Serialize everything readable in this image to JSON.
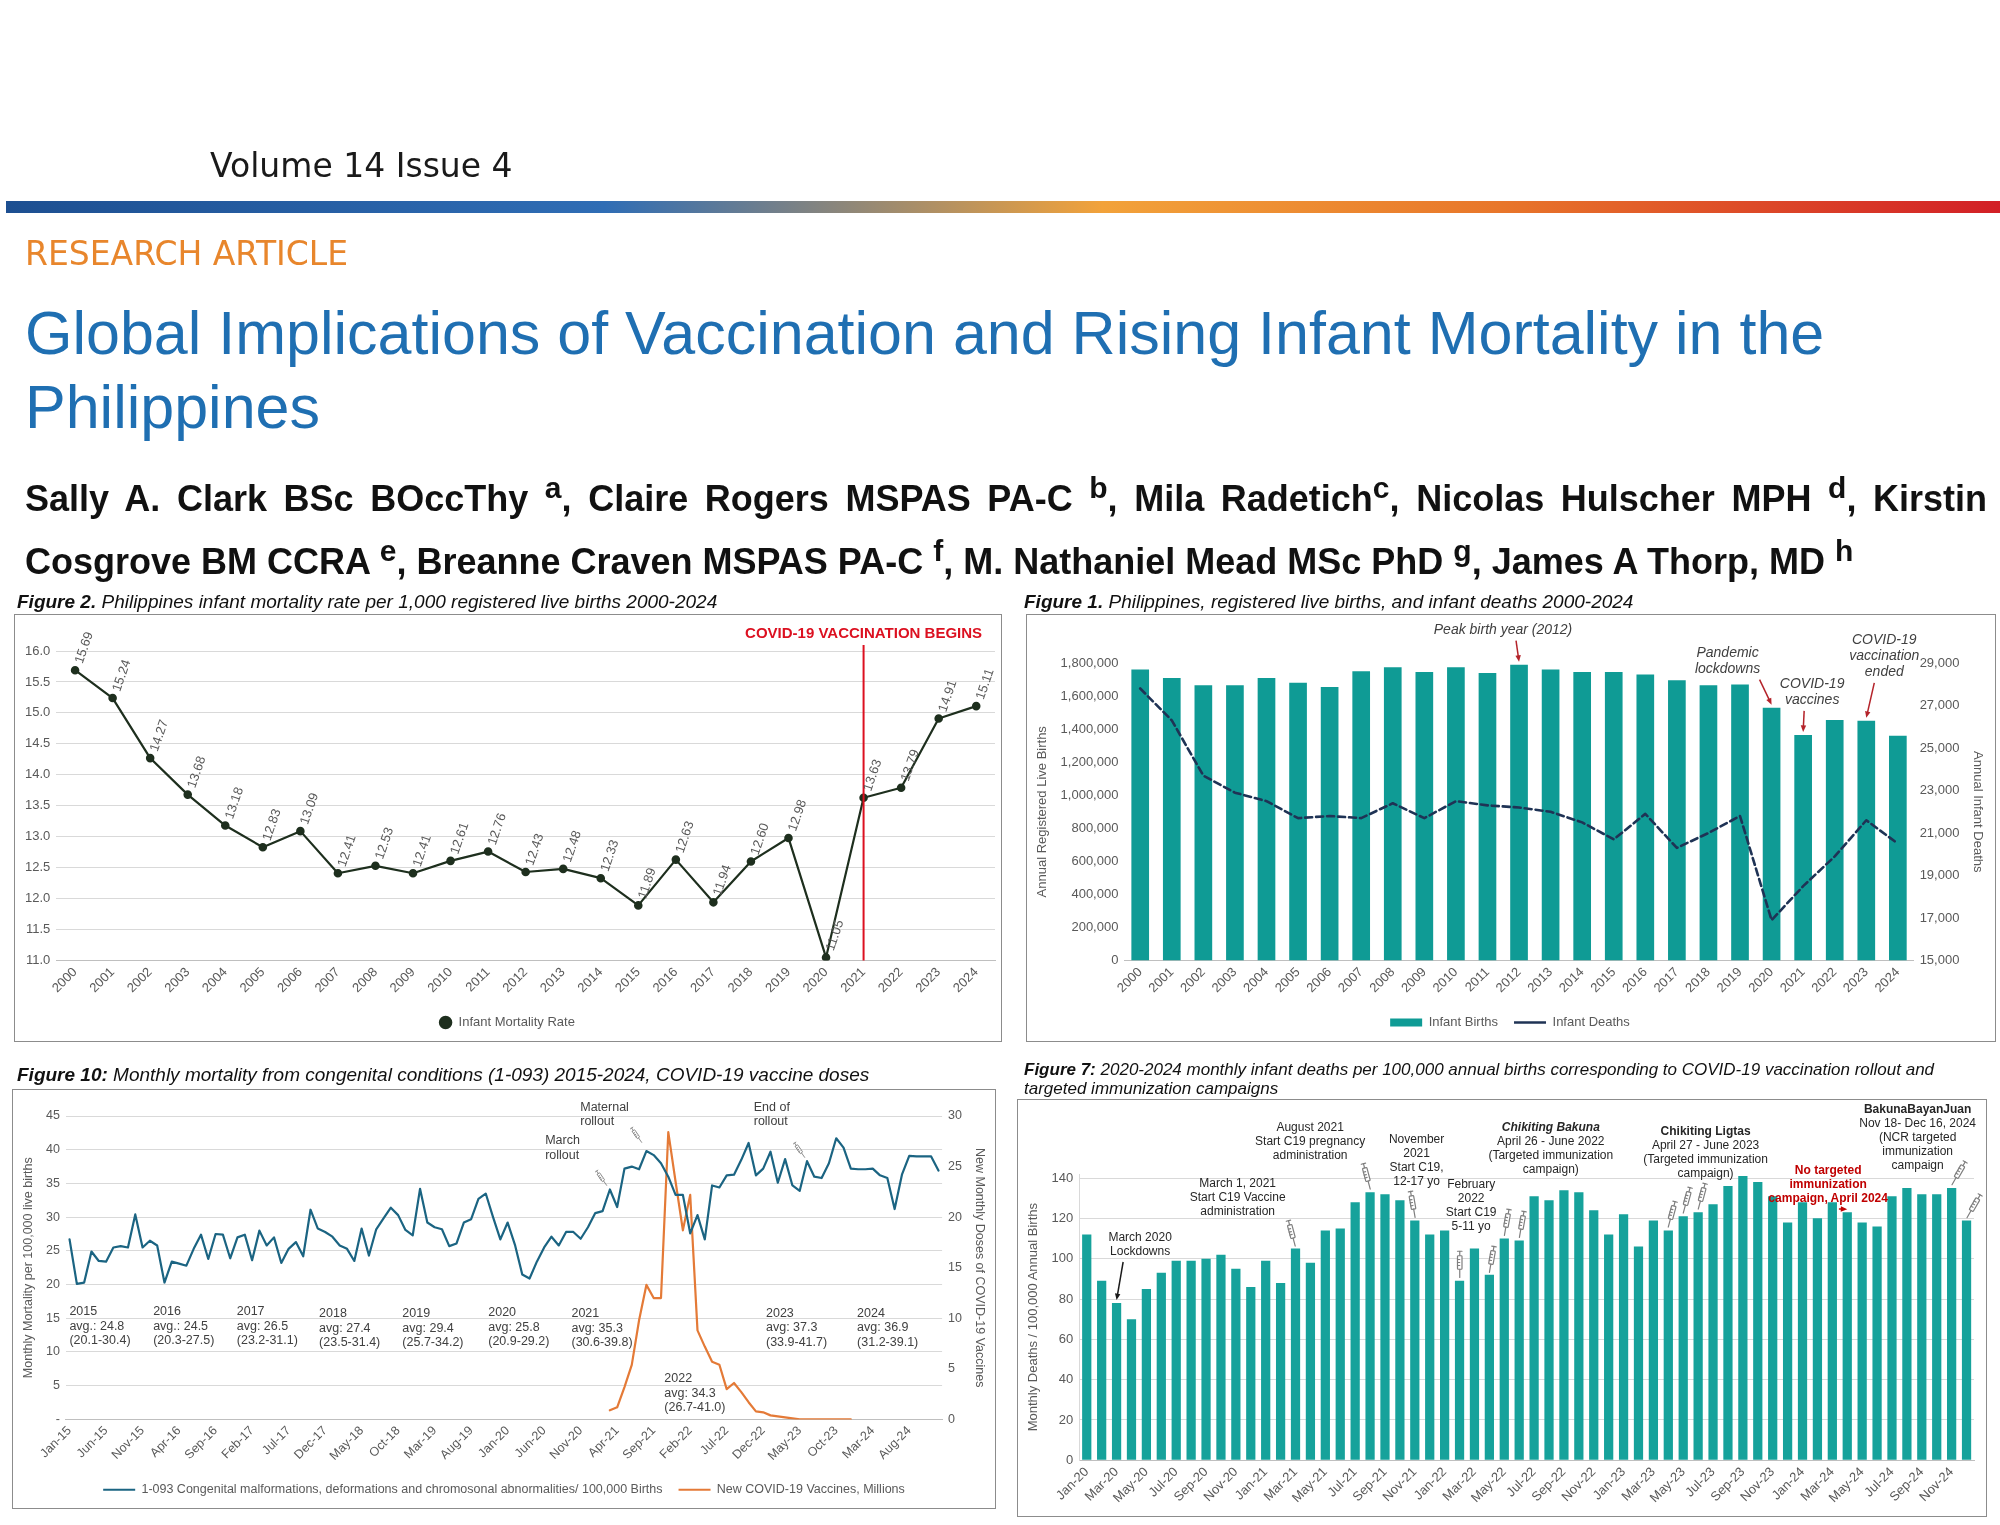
{
  "chart_data": [
    {
      "type": "other",
      "title": "Global Implications of Vaccination and Rising Infant Mortality in the Philippines",
      "annotations": [
        "Volume 14 Issue 4",
        "RESEARCH ARTICLE",
        "Sally A. Clark BSc BOccThy $^{a}$, Claire Rogers MSPAS PA-C $^{b}$, Mila Radetich$^{c}$, Nicolas Hulscher MPH $^{d}$, Kirstin Cosgrove BM CCRA $^{e}$, Breanne Craven MSPAS PA-C $^{f}$, M. Nathaniel Mead MSc PhD $^{g}$, James A Thorp, MD $^{h}$"
      ]
    },
    {
      "type": "line",
      "title": "Figure 2. Philippines infant mortality rate per 1,000 registered live births 2000-2024",
      "categories": [
        "2000",
        "2001",
        "2002",
        "2003",
        "2004",
        "2005",
        "2006",
        "2007",
        "2008",
        "2009",
        "2010",
        "2011",
        "2012",
        "2013",
        "2014",
        "2015",
        "2016",
        "2017",
        "2018",
        "2019",
        "2020",
        "2021",
        "2022",
        "2023",
        "2024"
      ],
      "series": [
        {
          "name": "Infant Mortality Rate",
          "color": "#1e2f1e",
          "values": [
            15.69,
            15.24,
            14.27,
            13.68,
            13.18,
            12.83,
            13.09,
            12.41,
            12.53,
            12.41,
            12.61,
            12.76,
            12.43,
            12.48,
            12.33,
            11.89,
            12.63,
            11.94,
            12.6,
            12.98,
            11.05,
            13.63,
            13.79,
            14.91,
            15.11
          ],
          "value_labels": [
            "15.69",
            "15.24",
            "14.27",
            "13.68",
            "13.18",
            "12.83",
            "13.09",
            "12.41",
            "12.53",
            "12.41",
            "12.61",
            "12.76",
            "12.43",
            "12.48",
            "12.33",
            "11.89",
            "12.63",
            "11.94",
            "12.60",
            "12.98",
            "11.05",
            "13.63",
            "13.79",
            "14.91",
            "15.11"
          ]
        }
      ],
      "ylim": [
        11,
        16
      ],
      "yticks": [
        {
          "value": 11,
          "label": "11.0"
        },
        11.5,
        {
          "value": 12,
          "label": "12.0"
        },
        12.5,
        {
          "value": 13,
          "label": "13.0"
        },
        13.5,
        {
          "value": 14,
          "label": "14.0"
        },
        14.5,
        {
          "value": 15,
          "label": "15.0"
        },
        15.5,
        {
          "value": 16,
          "label": "16.0"
        }
      ],
      "grid": "y",
      "legend": "bottom",
      "marker": "circle",
      "ref_lines": [
        {
          "axis": "x",
          "value": "2021",
          "label": "COVID-19 VACCINATION BEGINS",
          "color": "#dc1020"
        }
      ]
    },
    {
      "type": "bar",
      "title": "Figure 1. Philippines, registered live births, and infant deaths 2000-2024",
      "categories": [
        "2000",
        "2001",
        "2002",
        "2003",
        "2004",
        "2005",
        "2006",
        "2007",
        "2008",
        "2009",
        "2010",
        "2011",
        "2012",
        "2013",
        "2014",
        "2015",
        "2016",
        "2017",
        "2018",
        "2019",
        "2020",
        "2021",
        "2022",
        "2023",
        "2024"
      ],
      "series": [
        {
          "name": "Infant Births",
          "color": "#0f9b95",
          "values": [
            1760000,
            1710000,
            1665000,
            1665000,
            1710000,
            1680000,
            1655000,
            1750000,
            1775000,
            1745000,
            1775000,
            1740000,
            1790000,
            1760000,
            1745000,
            1745000,
            1730000,
            1695000,
            1665000,
            1670000,
            1530000,
            1365000,
            1455000,
            1450000,
            1360000
          ]
        },
        {
          "name": "Infant Deaths",
          "type": "line",
          "axis": "y2",
          "color": "#1f3355",
          "line_style": "dashed",
          "values": [
            27800,
            26300,
            23700,
            22900,
            22500,
            21700,
            21800,
            21700,
            22400,
            21700,
            22500,
            22300,
            22200,
            22000,
            21500,
            20700,
            21900,
            20300,
            21000,
            21800,
            16900,
            18500,
            19900,
            21600,
            20500
          ]
        }
      ],
      "ylabel": "Annual Registered Live Births",
      "y2label": "Annual Infant Deaths",
      "ylim": [
        0,
        1800000
      ],
      "yticks": [
        0,
        {
          "value": 200000,
          "label": "200,000"
        },
        {
          "value": 400000,
          "label": "400,000"
        },
        {
          "value": 600000,
          "label": "600,000"
        },
        {
          "value": 800000,
          "label": "800,000"
        },
        {
          "value": 1000000,
          "label": "1,000,000"
        },
        {
          "value": 1200000,
          "label": "1,200,000"
        },
        {
          "value": 1400000,
          "label": "1,400,000"
        },
        {
          "value": 1600000,
          "label": "1,600,000"
        },
        {
          "value": 1800000,
          "label": "1,800,000"
        }
      ],
      "y2lim": [
        15000,
        29000
      ],
      "y2ticks": [
        {
          "value": 15000,
          "label": "15,000"
        },
        {
          "value": 17000,
          "label": "17,000"
        },
        {
          "value": 19000,
          "label": "19,000"
        },
        {
          "value": 21000,
          "label": "21,000"
        },
        {
          "value": 23000,
          "label": "23,000"
        },
        {
          "value": 25000,
          "label": "25,000"
        },
        {
          "value": 27000,
          "label": "27,000"
        },
        {
          "value": 29000,
          "label": "29,000"
        }
      ],
      "legend": "bottom",
      "annotations": [
        {
          "text": "Peak birth year (2012)",
          "x": "2012",
          "y": 1790000
        },
        {
          "text": "Pandemic\nlockdowns",
          "x": "2020",
          "y": 1530000
        },
        {
          "text": "COVID-19\nvaccines",
          "x": "2021",
          "y": 1365000
        },
        {
          "text": "COVID-19\nvaccination\nended",
          "x": "2023",
          "y": 1450000
        }
      ]
    },
    {
      "type": "line",
      "title": "Figure 10: Monthly mortality from congenital conditions (1-093) 2015-2024, COVID-19 vaccine doses",
      "categories": [
        "Jan-15",
        null,
        null,
        null,
        null,
        "Jun-15",
        null,
        null,
        null,
        null,
        "Nov-15",
        null,
        null,
        null,
        null,
        "Apr-16",
        null,
        null,
        null,
        null,
        "Sep-16",
        null,
        null,
        null,
        null,
        "Feb-17",
        null,
        null,
        null,
        null,
        "Jul-17",
        null,
        null,
        null,
        null,
        "Dec-17",
        null,
        null,
        null,
        null,
        "May-18",
        null,
        null,
        null,
        null,
        "Oct-18",
        null,
        null,
        null,
        null,
        "Mar-19",
        null,
        null,
        null,
        null,
        "Aug-19",
        null,
        null,
        null,
        null,
        "Jan-20",
        null,
        null,
        null,
        null,
        "Jun-20",
        null,
        null,
        null,
        null,
        "Nov-20",
        null,
        null,
        null,
        null,
        "Apr-21",
        null,
        null,
        null,
        null,
        "Sep-21",
        null,
        null,
        null,
        null,
        "Feb-22",
        null,
        null,
        null,
        null,
        "Jul-22",
        null,
        null,
        null,
        null,
        "Dec-22",
        null,
        null,
        null,
        null,
        "May-23",
        null,
        null,
        null,
        null,
        "Oct-23",
        null,
        null,
        null,
        null,
        "Mar-24",
        null,
        null,
        null,
        null,
        "Aug-24",
        null,
        null,
        null,
        null
      ],
      "series": [
        {
          "name": "1-093 Congenital malformations, deformations and chromosonal abnormalities/ 100,000 Births",
          "color": "#1b6482",
          "values": [
            26.7,
            20.1,
            20.3,
            24.9,
            23.5,
            23.4,
            25.5,
            25.7,
            25.5,
            30.4,
            25.5,
            26.5,
            25.8,
            20.3,
            23.4,
            23.1,
            22.8,
            25.3,
            27.4,
            23.8,
            27.5,
            27.4,
            23.9,
            27.0,
            27.4,
            23.6,
            28.0,
            25.8,
            27.0,
            23.2,
            25.3,
            26.3,
            24.2,
            31.1,
            28.3,
            27.8,
            27.1,
            25.8,
            25.3,
            23.5,
            28.3,
            24.3,
            28.2,
            29.8,
            31.4,
            30.3,
            28.1,
            27.3,
            34.2,
            29.2,
            28.5,
            28.2,
            25.7,
            26.1,
            29.2,
            29.7,
            32.7,
            33.5,
            30.0,
            26.7,
            29.2,
            25.9,
            21.5,
            20.9,
            23.4,
            25.5,
            27.1,
            25.8,
            27.8,
            27.8,
            26.8,
            28.5,
            30.6,
            30.9,
            34.1,
            31.5,
            37.2,
            37.5,
            37.1,
            39.8,
            39.2,
            38.0,
            36.0,
            33.3,
            33.3,
            27.6,
            30.3,
            26.7,
            34.7,
            34.4,
            36.2,
            36.3,
            38.5,
            41.0,
            36.2,
            37.2,
            39.7,
            35.1,
            38.6,
            34.7,
            33.9,
            38.3,
            36.0,
            35.8,
            38.0,
            41.7,
            40.3,
            37.2,
            37.1,
            37.1,
            37.2,
            36.2,
            35.8,
            31.2,
            36.3,
            39.1,
            39.0,
            39.0,
            39.0,
            36.9
          ]
        },
        {
          "name": "New COVID-19 Vaccines, Millions",
          "color": "#e47a37",
          "axis": "y2",
          "values": [
            null,
            null,
            null,
            null,
            null,
            null,
            null,
            null,
            null,
            null,
            null,
            null,
            null,
            null,
            null,
            null,
            null,
            null,
            null,
            null,
            null,
            null,
            null,
            null,
            null,
            null,
            null,
            null,
            null,
            null,
            null,
            null,
            null,
            null,
            null,
            null,
            null,
            null,
            null,
            null,
            null,
            null,
            null,
            null,
            null,
            null,
            null,
            null,
            null,
            null,
            null,
            null,
            null,
            null,
            null,
            null,
            null,
            null,
            null,
            null,
            null,
            null,
            null,
            null,
            null,
            null,
            null,
            null,
            null,
            null,
            null,
            null,
            null,
            null,
            0.9,
            1.2,
            3.2,
            5.4,
            9.8,
            13.3,
            12.0,
            12.0,
            28.4,
            23.5,
            18.7,
            22.2,
            8.8,
            7.2,
            5.7,
            5.4,
            3.0,
            3.6,
            2.7,
            1.7,
            0.8,
            0.7,
            0.4,
            0.3,
            0.2,
            0.1,
            0,
            0,
            0,
            0,
            0,
            0,
            0,
            0,
            null,
            null,
            null,
            null,
            null,
            null,
            null,
            null,
            null,
            null,
            null,
            null
          ]
        }
      ],
      "ylabel": "Monthly Mortality per 100,000 live births",
      "y2label": "New Monthly Doses of COVID-19 Vaccines",
      "ylim": [
        0,
        45
      ],
      "yticks": [
        {
          "value": 0,
          "label": "-"
        },
        5,
        10,
        15,
        20,
        25,
        30,
        35,
        40,
        45
      ],
      "y2lim": [
        0,
        30
      ],
      "y2ticks": [
        0,
        5,
        10,
        15,
        20,
        25,
        30
      ],
      "grid": "y",
      "legend": "bottom",
      "annotations": [
        "2015\navg.: 24.8\n(20.1-30.4)",
        "2016\navg.: 24.5\n(20.3-27.5)",
        "2017\navg: 26.5\n(23.2-31.1)",
        "2018\navg: 27.4\n(23.5-31.4)",
        "2019\navg: 29.4\n(25.7-34.2)",
        "2020\navg: 25.8\n(20.9-29.2)",
        "2021\navg: 35.3\n(30.6-39.8)",
        "2022\navg: 34.3\n(26.7-41.0)",
        "2023\navg: 37.3\n(33.9-41.7)",
        "2024\navg: 36.9\n(31.2-39.1)",
        "March\nrollout",
        "Maternal\nrollout",
        "End of\nrollout"
      ]
    },
    {
      "type": "bar",
      "title": "Figure 7: 2020-2024 monthly infant deaths per 100,000 annual births corresponding to COVID-19 vaccination rollout and targeted immunization campaigns",
      "categories": [
        "Jan-20",
        null,
        "Mar-20",
        null,
        "May-20",
        null,
        "Jul-20",
        null,
        "Sep-20",
        null,
        "Nov-20",
        null,
        "Jan-21",
        null,
        "Mar-21",
        null,
        "May-21",
        null,
        "Jul-21",
        null,
        "Sep-21",
        null,
        "Nov-21",
        null,
        "Jan-22",
        null,
        "Mar-22",
        null,
        "May-22",
        null,
        "Jul-22",
        null,
        "Sep-22",
        null,
        "Nov-22",
        null,
        "Jan-23",
        null,
        "Mar-23",
        null,
        "May-23",
        null,
        "Jul-23",
        null,
        "Sep-23",
        null,
        "Nov-23",
        null,
        "Jan-24",
        null,
        "Mar-24",
        null,
        "May-24",
        null,
        "Jul-24",
        null,
        "Sep-24",
        null,
        "Nov-24",
        null
      ],
      "values": [
        112,
        89,
        78,
        70,
        85,
        93,
        99,
        99,
        100,
        102,
        95,
        86,
        99,
        88,
        105,
        98,
        114,
        115,
        128,
        133,
        132,
        129,
        119,
        112,
        114,
        89,
        105,
        92,
        110,
        109,
        131,
        129,
        134,
        133,
        124,
        112,
        122,
        106,
        119,
        114,
        121,
        123,
        127,
        136,
        141,
        138,
        131,
        118,
        128,
        120,
        128,
        123,
        118,
        116,
        131,
        135,
        132,
        132,
        135,
        119
      ],
      "color": "#16a29b",
      "ylabel": "Monthly Deaths / 100,000 Annual Births",
      "ylim": [
        0,
        142
      ],
      "yticks": [
        0,
        20,
        40,
        60,
        80,
        100,
        120,
        140
      ],
      "grid": "y",
      "annotations": [
        {
          "text": "March 2020\nLockdowns",
          "x": "Mar-20",
          "y": 78
        },
        "March 1, 2021\nStart C19 Vaccine\nadministration",
        "August 2021\nStart C19 pregnancy\nadministration",
        "November\n2021\nStart C19,\n12-17 yo",
        "February\n2022\nStart C19\n5-11 yo",
        "Chikiting Bakuna\nApril 26 - June 2022\n(Targeted immunization\ncampaign)",
        "Chikiting Ligtas\nApril 27 - June 2023\n(Targeted immunization\ncampaign)",
        {
          "text": "No targeted\nimmunization\ncampaign, April 2024",
          "y": 123
        },
        "BakunaBayanJuan\nNov 18- Dec 16, 2024\n(NCR targeted\nimmunization\ncampaign"
      ]
    }
  ]
}
